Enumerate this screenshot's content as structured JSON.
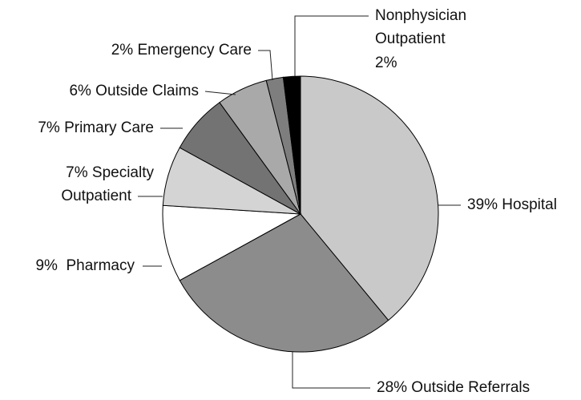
{
  "chart_data": {
    "type": "pie",
    "categories": [
      "Hospital",
      "Outside Referrals",
      "Pharmacy",
      "Specialty Outpatient",
      "Primary Care",
      "Outside Claims",
      "Emergency Care",
      "Nonphysician Outpatient"
    ],
    "values": [
      39,
      28,
      9,
      7,
      7,
      6,
      2,
      2
    ],
    "value_labels": [
      [
        "39% Hospital"
      ],
      [
        "28% Outside Referrals"
      ],
      [
        "9%  Pharmacy"
      ],
      [
        "7% Specialty",
        "Outpatient"
      ],
      [
        "7% Primary Care"
      ],
      [
        "6% Outside Claims"
      ],
      [
        "2% Emergency Care"
      ],
      [
        "Nonphysician",
        "Outpatient",
        "2%"
      ]
    ],
    "colors": [
      "#c9c9c9",
      "#8c8c8c",
      "#ffffff",
      "#d4d4d4",
      "#737373",
      "#a9a9a9",
      "#7e7e7e",
      "#000000"
    ]
  }
}
